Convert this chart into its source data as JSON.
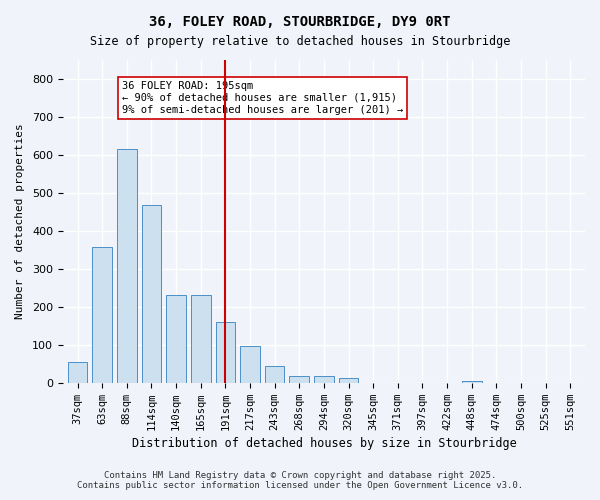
{
  "title_line1": "36, FOLEY ROAD, STOURBRIDGE, DY9 0RT",
  "title_line2": "Size of property relative to detached houses in Stourbridge",
  "xlabel": "Distribution of detached houses by size in Stourbridge",
  "ylabel": "Number of detached properties",
  "categories": [
    "37sqm",
    "63sqm",
    "88sqm",
    "114sqm",
    "140sqm",
    "165sqm",
    "191sqm",
    "217sqm",
    "243sqm",
    "268sqm",
    "294sqm",
    "320sqm",
    "345sqm",
    "371sqm",
    "397sqm",
    "422sqm",
    "448sqm",
    "474sqm",
    "500sqm",
    "525sqm",
    "551sqm"
  ],
  "bar_heights": [
    55,
    358,
    615,
    468,
    232,
    232,
    160,
    98,
    45,
    18,
    18,
    12,
    0,
    0,
    0,
    0,
    6,
    0,
    0,
    0,
    0
  ],
  "bar_color": "#cce0f0",
  "bar_edge_color": "#4a90c8",
  "vline_x_index": 6,
  "vline_color": "#cc0000",
  "vline_label": "36 FOLEY ROAD: 195sqm",
  "annotation_line1": "36 FOLEY ROAD: 195sqm",
  "annotation_line2": "← 90% of detached houses are smaller (1,915)",
  "annotation_line3": "9% of semi-detached houses are larger (201) →",
  "ylim": [
    0,
    850
  ],
  "yticks": [
    0,
    100,
    200,
    300,
    400,
    500,
    600,
    700,
    800
  ],
  "footer_line1": "Contains HM Land Registry data © Crown copyright and database right 2025.",
  "footer_line2": "Contains public sector information licensed under the Open Government Licence v3.0.",
  "background_color": "#f0f4fa",
  "grid_color": "#ffffff"
}
